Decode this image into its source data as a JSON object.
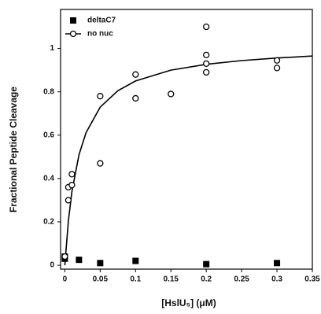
{
  "chart_data": {
    "type": "scatter",
    "x_label": "[HslU₅] (μM)",
    "y_label": "Fractional Peptide Cleavage",
    "xlim": [
      -0.006,
      0.35
    ],
    "ylim": [
      -0.018,
      1.18
    ],
    "xticks": [
      0,
      0.05,
      0.1,
      0.15,
      0.2,
      0.25,
      0.3,
      0.35
    ],
    "yticks": [
      0,
      0.2,
      0.4,
      0.6,
      0.8,
      1
    ],
    "legend": "upper-left",
    "series": [
      {
        "name": "deltaC7",
        "color": "#000000",
        "marker": "square",
        "x": [
          0,
          0,
          0.02,
          0.05,
          0.1,
          0.2,
          0.3
        ],
        "values": [
          0.04,
          0.03,
          0.025,
          0.01,
          0.02,
          0.005,
          0.01
        ]
      },
      {
        "name": "no nuc",
        "color": "#000000",
        "marker": "circle",
        "x": [
          0,
          0.005,
          0.005,
          0.01,
          0.01,
          0.05,
          0.05,
          0.1,
          0.1,
          0.15,
          0.2,
          0.2,
          0.2,
          0.2,
          0.3,
          0.3
        ],
        "values": [
          0.04,
          0.3,
          0.36,
          0.37,
          0.42,
          0.47,
          0.78,
          0.77,
          0.88,
          0.79,
          0.89,
          0.93,
          0.97,
          1.1,
          0.91,
          0.945
        ],
        "fit": {
          "x": [
            0,
            0.005,
            0.01,
            0.02,
            0.03,
            0.05,
            0.075,
            0.1,
            0.15,
            0.2,
            0.25,
            0.3,
            0.35
          ],
          "values": [
            0,
            0.204,
            0.34,
            0.51,
            0.612,
            0.729,
            0.805,
            0.85,
            0.9,
            0.927,
            0.944,
            0.956,
            0.965
          ]
        }
      }
    ]
  }
}
